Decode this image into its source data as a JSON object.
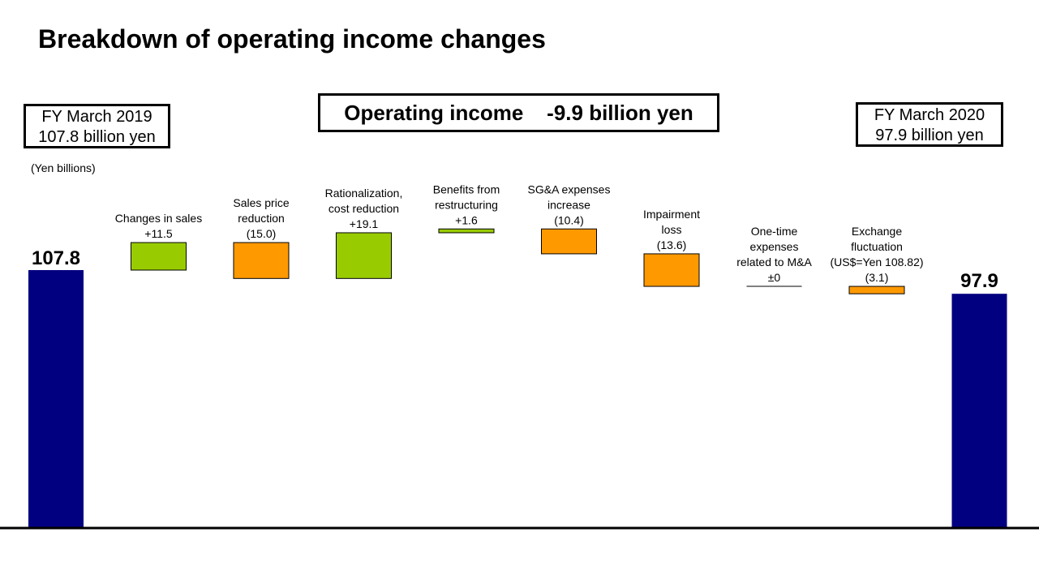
{
  "title": "Breakdown of operating income changes",
  "summary_box": "Operating income    -9.9 billion yen",
  "start_box": {
    "line1": "FY March 2019",
    "line2": "107.8 billion  yen"
  },
  "end_box": {
    "line1": "FY March 2020",
    "line2": "97.9 billion  yen"
  },
  "unit": "(Yen billions)",
  "colors": {
    "total": "#000080",
    "increase": "#99CC00",
    "decrease": "#FF9900",
    "baseline": "#000000"
  },
  "chart_data": {
    "type": "bar",
    "subtype": "waterfall",
    "start": {
      "value": 107.8,
      "label": "107.8"
    },
    "end": {
      "value": 97.9,
      "label": "97.9"
    },
    "steps": [
      {
        "label": [
          "Changes in sales"
        ],
        "value_label": "+11.5",
        "delta": 11.5
      },
      {
        "label": [
          "Sales price",
          "reduction"
        ],
        "value_label": "(15.0)",
        "delta": -15.0
      },
      {
        "label": [
          "Rationalization,",
          "cost reduction"
        ],
        "value_label": "+19.1",
        "delta": 19.1
      },
      {
        "label": [
          "Benefits from",
          "restructuring"
        ],
        "value_label": "+1.6",
        "delta": 1.6
      },
      {
        "label": [
          "SG&A expenses",
          "increase"
        ],
        "value_label": "(10.4)",
        "delta": -10.4
      },
      {
        "label": [
          "Impairment",
          "loss"
        ],
        "value_label": "(13.6)",
        "delta": -13.6
      },
      {
        "label": [
          "One-time",
          "expenses",
          "related to M&A"
        ],
        "value_label": "±0",
        "delta": 0
      },
      {
        "label": [
          "Exchange",
          "fluctuation",
          "(US$=Yen 108.82)"
        ],
        "value_label": "(3.1)",
        "delta": -3.1
      }
    ]
  }
}
